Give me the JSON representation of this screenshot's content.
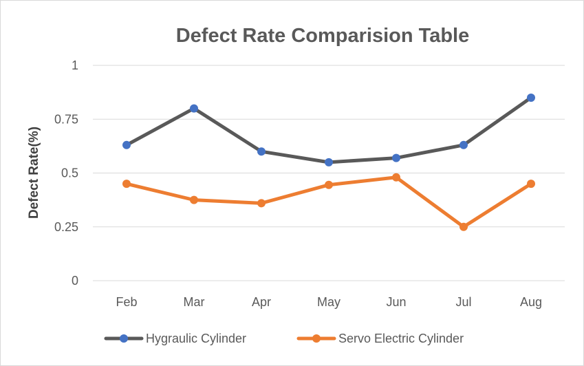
{
  "chart_data": {
    "type": "line",
    "title": "Defect Rate Comparision Table",
    "xlabel": "",
    "ylabel": "Defect Rate(%)",
    "categories": [
      "Feb",
      "Mar",
      "Apr",
      "May",
      "Jun",
      "Jul",
      "Aug"
    ],
    "ylim": [
      0,
      1
    ],
    "yticks": [
      0,
      0.25,
      0.5,
      0.75,
      1
    ],
    "ytick_labels": [
      "0",
      "0.25",
      "0.5",
      "0.75",
      "1"
    ],
    "grid": true,
    "legend_position": "bottom",
    "series": [
      {
        "name": "Hygraulic Cylinder",
        "values": [
          0.63,
          0.8,
          0.6,
          0.55,
          0.57,
          0.63,
          0.85
        ],
        "line_color": "#595959",
        "marker_color": "#4472c4"
      },
      {
        "name": "Servo Electric Cylinder",
        "values": [
          0.45,
          0.375,
          0.36,
          0.445,
          0.48,
          0.25,
          0.45
        ],
        "line_color": "#ed7d31",
        "marker_color": "#ed7d31"
      }
    ]
  }
}
